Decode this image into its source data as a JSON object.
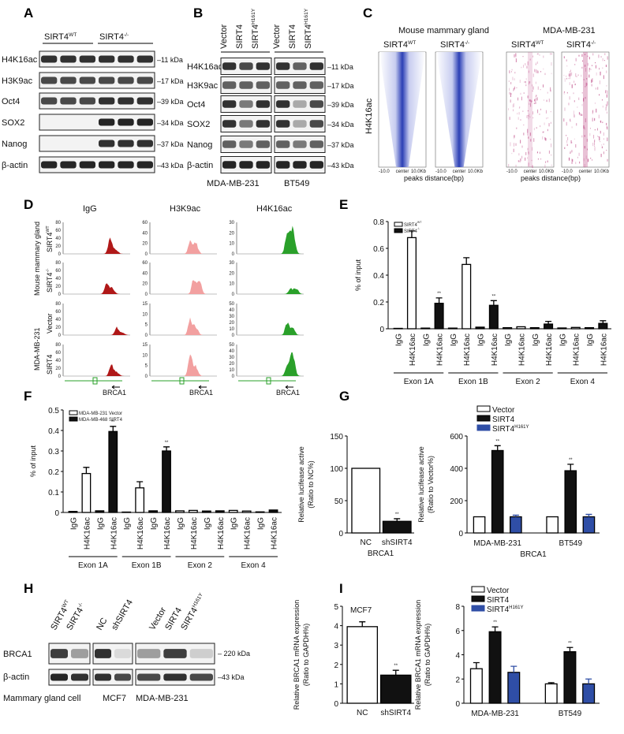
{
  "panel_letters": [
    "A",
    "B",
    "C",
    "D",
    "E",
    "F",
    "G",
    "H",
    "I"
  ],
  "panel_a": {
    "headers": [
      {
        "base": "SIRT4",
        "sup": "WT"
      },
      {
        "base": "SIRT4",
        "sup": "-/-"
      }
    ],
    "rows": [
      "H4K16ac",
      "H3K9ac",
      "Oct4",
      "SOX2",
      "Nanog",
      "β-actin"
    ],
    "sizes": [
      "11 kDa",
      "17 kDa",
      "39 kDa",
      "34 kDa",
      "37 kDa",
      "43 kDa"
    ]
  },
  "panel_b": {
    "lanes": [
      "Vector",
      "SIRT4",
      {
        "base": "SIRT4",
        "sup": "H161Y"
      },
      "Vector",
      "SIRT4",
      {
        "base": "SIRT4",
        "sup": "H161Y"
      }
    ],
    "rows": [
      "H4K16ac",
      "H3K9ac",
      "Oct4",
      "SOX2",
      "Nanog",
      "β-actin"
    ],
    "sizes": [
      "11 kDa",
      "17 kDa",
      "39 kDa",
      "34 kDa",
      "37 kDa",
      "43 kDa"
    ],
    "cell_lines": [
      "MDA-MB-231",
      "BT549"
    ]
  },
  "panel_c": {
    "groups": [
      "Mouse mammary gland",
      "MDA-MB-231"
    ],
    "headers": [
      {
        "base": "SIRT4",
        "sup": "WT"
      },
      {
        "base": "SIRT4",
        "sup": "-/-"
      },
      {
        "base": "SIRT4",
        "sup": "WT"
      },
      {
        "base": "SIRT4",
        "sup": "-/-"
      }
    ],
    "row_label": "H4K16ac",
    "axis_ticks": [
      "-10.0",
      "center",
      "10.0Kb"
    ],
    "xlabel": "peaks distance(bp)"
  },
  "panel_d": {
    "columns": [
      "IgG",
      "H3K9ac",
      "H4K16ac"
    ],
    "group_labels": [
      "Mouse mammary gland",
      "MDA-MB-231"
    ],
    "row_labels": [
      {
        "base": "SIRT4",
        "sup": "WT"
      },
      {
        "base": "SIRT4",
        "sup": "-/-"
      },
      "Vector",
      "SIRT4"
    ],
    "yticks": [
      [
        [
          "0",
          "20",
          "40",
          "60",
          "80"
        ],
        [
          "0",
          "20",
          "40",
          "60"
        ],
        [
          "0",
          "10",
          "20",
          "30"
        ]
      ],
      [
        [
          "0",
          "20",
          "40",
          "60",
          "80"
        ],
        [
          "0",
          "20",
          "40",
          "60"
        ],
        [
          "0",
          "10",
          "20",
          "30"
        ]
      ],
      [
        [
          "0",
          "20",
          "40",
          "60",
          "80"
        ],
        [
          "0",
          "5",
          "10",
          "15"
        ],
        [
          "0",
          "10",
          "20",
          "30",
          "40",
          "50"
        ]
      ],
      [
        [
          "0",
          "20",
          "40",
          "60",
          "80"
        ],
        [
          "0",
          "5",
          "10",
          "15"
        ],
        [
          "0",
          "10",
          "20",
          "30",
          "40",
          "50"
        ]
      ]
    ],
    "gene": "BRCA1"
  },
  "panel_h": {
    "lanes": [
      {
        "base": "SIRT4",
        "sup": "WT"
      },
      {
        "base": "SIRT4",
        "sup": "-/-"
      },
      "NC",
      "shSIRT4",
      "Vector",
      "SIRT4",
      {
        "base": "SIRT4",
        "sup": "H161Y"
      }
    ],
    "rows": [
      "BRCA1",
      "β-actin"
    ],
    "sizes": [
      "220 kDa",
      "43 kDa"
    ],
    "cell_lines": [
      "Mammary gland cell",
      "MCF7",
      "MDA-MB-231"
    ]
  },
  "colors": {
    "white": "#ffffff",
    "black": "#111111",
    "blue": "#2f4ea6",
    "igg": "#b01818",
    "h3k9": "#f2a0a0",
    "h4k16": "#2aa02a",
    "heat_blue": "#2b3fb5",
    "heat_pink": "#c0508a"
  },
  "chart_data": [
    {
      "id": "E",
      "type": "bar",
      "ylabel": "% of input",
      "ylim": [
        0,
        0.8
      ],
      "yticks": [
        "0",
        "0.2",
        "0.4",
        "0.6",
        "0.8"
      ],
      "legend": [
        {
          "base": "SIRT4",
          "sup": "WT"
        },
        {
          "base": "SIRT4",
          "sup": "-/-"
        }
      ],
      "legend_placement": "top-left",
      "groups": [
        {
          "label": "Exon 1A",
          "bars": [
            {
              "x": "IgG",
              "s": 0,
              "v": 0.003,
              "e": 0
            },
            {
              "x": "H4K16ac",
              "s": 0,
              "v": 0.68,
              "e": 0.05
            },
            {
              "x": "IgG",
              "s": 1,
              "v": 0.005,
              "e": 0
            },
            {
              "x": "H4K16ac",
              "s": 1,
              "v": 0.19,
              "e": 0.04,
              "sig": "**"
            }
          ]
        },
        {
          "label": "Exon 1B",
          "bars": [
            {
              "x": "IgG",
              "s": 0,
              "v": 0.005,
              "e": 0
            },
            {
              "x": "H4K16ac",
              "s": 0,
              "v": 0.48,
              "e": 0.05
            },
            {
              "x": "IgG",
              "s": 1,
              "v": 0.012,
              "e": 0
            },
            {
              "x": "H4K16ac",
              "s": 1,
              "v": 0.175,
              "e": 0.035,
              "sig": "**"
            }
          ]
        },
        {
          "label": "Exon 2",
          "bars": [
            {
              "x": "IgG",
              "s": 0,
              "v": 0.008,
              "e": 0
            },
            {
              "x": "H4K16ac",
              "s": 0,
              "v": 0.015,
              "e": 0
            },
            {
              "x": "IgG",
              "s": 1,
              "v": 0.008,
              "e": 0
            },
            {
              "x": "H4K16ac",
              "s": 1,
              "v": 0.035,
              "e": 0.02
            }
          ]
        },
        {
          "label": "Exon 4",
          "bars": [
            {
              "x": "IgG",
              "s": 0,
              "v": 0.006,
              "e": 0
            },
            {
              "x": "H4K16ac",
              "s": 0,
              "v": 0.01,
              "e": 0
            },
            {
              "x": "IgG",
              "s": 1,
              "v": 0.008,
              "e": 0
            },
            {
              "x": "H4K16ac",
              "s": 1,
              "v": 0.04,
              "e": 0.02
            }
          ]
        }
      ]
    },
    {
      "id": "F",
      "type": "bar",
      "ylabel": "% of input",
      "ylim": [
        0,
        0.5
      ],
      "yticks": [
        "0",
        "0.1",
        "0.2",
        "0.3",
        "0.4",
        "0.5"
      ],
      "legend": [
        "MDA-MB-231 Vector",
        "MDA-MB-468 SIRT4"
      ],
      "legend_placement": "top-left",
      "groups": [
        {
          "label": "Exon 1A",
          "bars": [
            {
              "x": "IgG",
              "s": 0,
              "v": 0.005,
              "e": 0
            },
            {
              "x": "H4K16ac",
              "s": 0,
              "v": 0.19,
              "e": 0.03
            },
            {
              "x": "IgG",
              "s": 1,
              "v": 0.008,
              "e": 0
            },
            {
              "x": "H4K16ac",
              "s": 1,
              "v": 0.395,
              "e": 0.025,
              "sig": "**"
            }
          ]
        },
        {
          "label": "Exon 1B",
          "bars": [
            {
              "x": "IgG",
              "s": 0,
              "v": 0.002,
              "e": 0
            },
            {
              "x": "H4K16ac",
              "s": 0,
              "v": 0.12,
              "e": 0.03
            },
            {
              "x": "IgG",
              "s": 1,
              "v": 0.008,
              "e": 0
            },
            {
              "x": "H4K16ac",
              "s": 1,
              "v": 0.3,
              "e": 0.02,
              "sig": "**"
            }
          ]
        },
        {
          "label": "Exon 2",
          "bars": [
            {
              "x": "IgG",
              "s": 0,
              "v": 0.008,
              "e": 0
            },
            {
              "x": "H4K16ac",
              "s": 0,
              "v": 0.01,
              "e": 0
            },
            {
              "x": "IgG",
              "s": 1,
              "v": 0.007,
              "e": 0
            },
            {
              "x": "H4K16ac",
              "s": 1,
              "v": 0.008,
              "e": 0
            }
          ]
        },
        {
          "label": "Exon 4",
          "bars": [
            {
              "x": "IgG",
              "s": 0,
              "v": 0.01,
              "e": 0
            },
            {
              "x": "H4K16ac",
              "s": 0,
              "v": 0.007,
              "e": 0
            },
            {
              "x": "IgG",
              "s": 1,
              "v": 0.003,
              "e": 0
            },
            {
              "x": "H4K16ac",
              "s": 1,
              "v": 0.012,
              "e": 0
            }
          ]
        }
      ]
    },
    {
      "id": "G1",
      "type": "bar",
      "ylabel": [
        "Relative lucifease active",
        "(Ratio to NC%)"
      ],
      "ylim": [
        0,
        150
      ],
      "yticks": [
        "0",
        "50",
        "100",
        "150"
      ],
      "xlabel": "BRCA1",
      "groups": [
        {
          "label": "",
          "bars": [
            {
              "x": "NC",
              "s": 0,
              "v": 100,
              "e": 0
            },
            {
              "x": "shSIRT4",
              "s": 1,
              "v": 18,
              "e": 4,
              "sig": "**"
            }
          ]
        }
      ]
    },
    {
      "id": "G2",
      "type": "bar",
      "ylabel": [
        "Relative lucifease active",
        "(Ratio to Vector%)"
      ],
      "ylim": [
        0,
        600
      ],
      "yticks": [
        "0",
        "200",
        "400",
        "600"
      ],
      "xlabel": "BRCA1",
      "legend": [
        "Vector",
        "SIRT4",
        {
          "base": "SIRT4",
          "sup": "H161Y"
        }
      ],
      "legend_placement": "top",
      "groups": [
        {
          "label": "MDA-MB-231",
          "bars": [
            {
              "x": "Vector",
              "s": 0,
              "v": 100,
              "e": 0
            },
            {
              "x": "SIRT4",
              "s": 1,
              "v": 510,
              "e": 30,
              "sig": "**"
            },
            {
              "x": "SIRT4 H161Y",
              "s": 2,
              "v": 100,
              "e": 10
            }
          ]
        },
        {
          "label": "BT549",
          "bars": [
            {
              "x": "Vector",
              "s": 0,
              "v": 100,
              "e": 0
            },
            {
              "x": "SIRT4",
              "s": 1,
              "v": 385,
              "e": 40,
              "sig": "**"
            },
            {
              "x": "SIRT4 H161Y",
              "s": 2,
              "v": 100,
              "e": 15
            }
          ]
        }
      ]
    },
    {
      "id": "I1",
      "type": "bar",
      "title": "MCF7",
      "ylabel": [
        "Relative BRCA1 mRNA expression",
        "(Ratio to GAPDH%)"
      ],
      "ylim": [
        0,
        5
      ],
      "yticks": [
        "0",
        "1",
        "2",
        "3",
        "4",
        "5"
      ],
      "groups": [
        {
          "label": "",
          "bars": [
            {
              "x": "NC",
              "s": 0,
              "v": 3.95,
              "e": 0.25
            },
            {
              "x": "shSIRT4",
              "s": 1,
              "v": 1.45,
              "e": 0.25,
              "sig": "**"
            }
          ]
        }
      ]
    },
    {
      "id": "I2",
      "type": "bar",
      "ylabel": [
        "Relative BRCA1 mRNA expression",
        "(Ratio to GAPDH%)"
      ],
      "ylim": [
        0,
        8
      ],
      "yticks": [
        "0",
        "2",
        "4",
        "6",
        "8"
      ],
      "legend": [
        "Vector",
        "SIRT4",
        {
          "base": "SIRT4",
          "sup": "H161Y"
        }
      ],
      "legend_placement": "top-left",
      "groups": [
        {
          "label": "MDA-MB-231",
          "bars": [
            {
              "x": "Vector",
              "s": 0,
              "v": 2.85,
              "e": 0.5
            },
            {
              "x": "SIRT4",
              "s": 1,
              "v": 5.9,
              "e": 0.4,
              "sig": "**"
            },
            {
              "x": "SIRT4 H161Y",
              "s": 2,
              "v": 2.55,
              "e": 0.5
            }
          ]
        },
        {
          "label": "BT549",
          "bars": [
            {
              "x": "Vector",
              "s": 0,
              "v": 1.6,
              "e": 0.1
            },
            {
              "x": "SIRT4",
              "s": 1,
              "v": 4.25,
              "e": 0.35,
              "sig": "**"
            },
            {
              "x": "SIRT4 H161Y",
              "s": 2,
              "v": 1.6,
              "e": 0.4
            }
          ]
        }
      ]
    }
  ]
}
